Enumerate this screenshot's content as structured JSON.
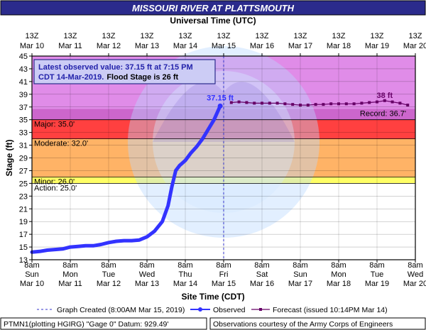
{
  "chart_data": {
    "type": "line",
    "title": "MISSOURI RIVER AT PLATTSMOUTH",
    "top_axis_title": "Universal Time (UTC)",
    "bottom_axis_title": "Site Time (CDT)",
    "ylabel": "Stage (ft)",
    "ylim": [
      13,
      45
    ],
    "yticks": [
      13,
      15,
      17,
      19,
      21,
      23,
      25,
      27,
      29,
      31,
      33,
      35,
      37,
      39,
      41,
      43,
      45
    ],
    "xlim_day_index": [
      0,
      10
    ],
    "top_ticks": [
      {
        "l1": "13Z",
        "l2": "Mar 10"
      },
      {
        "l1": "13Z",
        "l2": "Mar 11"
      },
      {
        "l1": "13Z",
        "l2": "Mar 12"
      },
      {
        "l1": "13Z",
        "l2": "Mar 13"
      },
      {
        "l1": "13Z",
        "l2": "Mar 14"
      },
      {
        "l1": "13Z",
        "l2": "Mar 15"
      },
      {
        "l1": "13Z",
        "l2": "Mar 16"
      },
      {
        "l1": "13Z",
        "l2": "Mar 17"
      },
      {
        "l1": "13Z",
        "l2": "Mar 18"
      },
      {
        "l1": "13Z",
        "l2": "Mar 19"
      },
      {
        "l1": "13Z",
        "l2": "Mar 20"
      }
    ],
    "bottom_ticks": [
      {
        "l1": "8am",
        "l2": "Sun",
        "l3": "Mar 10"
      },
      {
        "l1": "8am",
        "l2": "Mon",
        "l3": "Mar 11"
      },
      {
        "l1": "8am",
        "l2": "Tue",
        "l3": "Mar 12"
      },
      {
        "l1": "8am",
        "l2": "Wed",
        "l3": "Mar 13"
      },
      {
        "l1": "8am",
        "l2": "Thu",
        "l3": "Mar 14"
      },
      {
        "l1": "8am",
        "l2": "Fri",
        "l3": "Mar 15"
      },
      {
        "l1": "8am",
        "l2": "Sat",
        "l3": "Mar 16"
      },
      {
        "l1": "8am",
        "l2": "Sun",
        "l3": "Mar 17"
      },
      {
        "l1": "8am",
        "l2": "Mon",
        "l3": "Mar 18"
      },
      {
        "l1": "8am",
        "l2": "Tue",
        "l3": "Mar 19"
      },
      {
        "l1": "8am",
        "l2": "Wed",
        "l3": "Mar 20"
      }
    ],
    "flood_bands": [
      {
        "name": "Record",
        "from": 36.7,
        "to": 45,
        "color": "#e08ce8"
      },
      {
        "name": "Major",
        "from": 35,
        "to": 36.7,
        "color": "#cc66cc"
      },
      {
        "name": "Major-Moderate",
        "from": 32,
        "to": 35,
        "color": "#ff4040"
      },
      {
        "name": "Moderate",
        "from": 26,
        "to": 32,
        "color": "#ffb366"
      },
      {
        "name": "Minor",
        "from": 25,
        "to": 26,
        "color": "#ffff66"
      }
    ],
    "threshold_labels": [
      {
        "text": "Major: 35.0'",
        "value": 35
      },
      {
        "text": "Moderate: 32.0'",
        "value": 32
      },
      {
        "text": "Minor: 26.0'",
        "value": 26
      },
      {
        "text": "Action: 25.0'",
        "value": 25
      },
      {
        "text": "Record: 36.7'",
        "value": 36.7
      }
    ],
    "graph_created_day_index": 5.0,
    "series": [
      {
        "name": "Observed",
        "color": "#3333ff",
        "points": [
          [
            0.0,
            14.2
          ],
          [
            0.2,
            14.3
          ],
          [
            0.4,
            14.5
          ],
          [
            0.6,
            14.6
          ],
          [
            0.8,
            14.7
          ],
          [
            1.0,
            15.0
          ],
          [
            1.2,
            15.1
          ],
          [
            1.4,
            15.2
          ],
          [
            1.6,
            15.2
          ],
          [
            1.8,
            15.4
          ],
          [
            2.0,
            15.7
          ],
          [
            2.2,
            15.9
          ],
          [
            2.4,
            16.0
          ],
          [
            2.6,
            16.0
          ],
          [
            2.8,
            16.1
          ],
          [
            3.0,
            16.6
          ],
          [
            3.2,
            17.5
          ],
          [
            3.4,
            19.0
          ],
          [
            3.55,
            21.5
          ],
          [
            3.65,
            24.5
          ],
          [
            3.75,
            27.0
          ],
          [
            3.85,
            27.8
          ],
          [
            4.0,
            28.6
          ],
          [
            4.15,
            29.8
          ],
          [
            4.3,
            30.8
          ],
          [
            4.45,
            32.0
          ],
          [
            4.6,
            33.5
          ],
          [
            4.75,
            35.0
          ],
          [
            4.91,
            37.15
          ]
        ]
      },
      {
        "name": "Forecast",
        "color": "#660066",
        "points": [
          [
            5.2,
            37.7
          ],
          [
            5.4,
            37.8
          ],
          [
            5.6,
            37.7
          ],
          [
            5.8,
            37.6
          ],
          [
            6.0,
            37.6
          ],
          [
            6.2,
            37.6
          ],
          [
            6.4,
            37.6
          ],
          [
            6.6,
            37.5
          ],
          [
            6.8,
            37.4
          ],
          [
            7.0,
            37.3
          ],
          [
            7.2,
            37.3
          ],
          [
            7.4,
            37.4
          ],
          [
            7.6,
            37.4
          ],
          [
            7.8,
            37.5
          ],
          [
            8.0,
            37.5
          ],
          [
            8.2,
            37.5
          ],
          [
            8.4,
            37.5
          ],
          [
            8.6,
            37.6
          ],
          [
            8.8,
            37.7
          ],
          [
            9.0,
            37.8
          ],
          [
            9.2,
            38.0
          ],
          [
            9.4,
            37.8
          ],
          [
            9.6,
            37.6
          ],
          [
            9.8,
            37.3
          ]
        ]
      }
    ],
    "annotations": [
      {
        "text": "37.15 ft",
        "x": 4.91,
        "y": 37.15,
        "color": "#3333ff"
      },
      {
        "text": "38 ft",
        "x": 9.2,
        "y": 38.0,
        "color": "#660066"
      }
    ],
    "info_box": {
      "line1": "Latest observed value: 37.15 ft at 7:15 PM",
      "line2a": "CDT 14-Mar-2019.",
      "line2b": "Flood Stage is 26 ft"
    },
    "legend": {
      "graph_created": "Graph Created (8:00AM Mar 15, 2019)",
      "observed": "Observed",
      "forecast": "Forecast (issued 10:14PM Mar 14)"
    },
    "footer": {
      "left": "PTMN1(plotting HGIRG) \"Gage 0\" Datum: 929.49'",
      "right": "Observations courtesy of the Army Corps of Engineers"
    }
  }
}
